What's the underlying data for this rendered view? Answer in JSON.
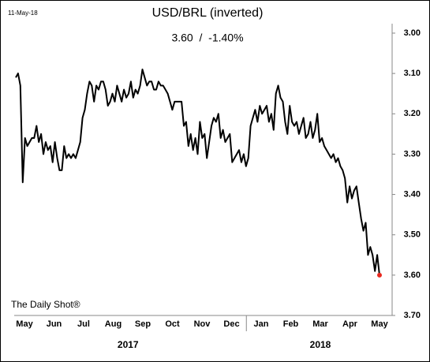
{
  "chart_data": {
    "type": "line",
    "date": "11-May-18",
    "title": "USD/BRL (inverted)",
    "subtitle": "3.60  /  -1.40%",
    "source": "The Daily Shot®",
    "x_labels": [
      "May",
      "Jun",
      "Jul",
      "Aug",
      "Sep",
      "Oct",
      "Nov",
      "Dec",
      "Jan",
      "Feb",
      "Mar",
      "Apr",
      "May"
    ],
    "years": [
      "2017",
      "2018"
    ],
    "inverted": true,
    "ylim": [
      3.0,
      3.7
    ],
    "yticks": [
      {
        "value": 3.0,
        "label": "3.00"
      },
      {
        "value": 3.1,
        "label": "3.10"
      },
      {
        "value": 3.2,
        "label": "3.20"
      },
      {
        "value": 3.3,
        "label": "3.30"
      },
      {
        "value": 3.4,
        "label": "3.40"
      },
      {
        "value": 3.5,
        "label": "3.50"
      },
      {
        "value": 3.6,
        "label": "3.60"
      },
      {
        "value": 3.7,
        "label": "3.70"
      }
    ],
    "series": [
      {
        "name": "USD/BRL",
        "color": "#000000",
        "last_point_color": "#e8281e",
        "values": [
          3.11,
          3.1,
          3.13,
          3.37,
          3.26,
          3.28,
          3.27,
          3.26,
          3.26,
          3.23,
          3.27,
          3.25,
          3.3,
          3.27,
          3.29,
          3.28,
          3.32,
          3.27,
          3.31,
          3.34,
          3.34,
          3.28,
          3.31,
          3.3,
          3.31,
          3.3,
          3.31,
          3.29,
          3.27,
          3.21,
          3.19,
          3.15,
          3.12,
          3.13,
          3.17,
          3.13,
          3.14,
          3.12,
          3.12,
          3.14,
          3.18,
          3.17,
          3.15,
          3.17,
          3.13,
          3.15,
          3.17,
          3.14,
          3.16,
          3.15,
          3.12,
          3.16,
          3.14,
          3.15,
          3.13,
          3.09,
          3.11,
          3.13,
          3.12,
          3.12,
          3.14,
          3.14,
          3.12,
          3.13,
          3.13,
          3.14,
          3.15,
          3.17,
          3.19,
          3.17,
          3.17,
          3.17,
          3.17,
          3.23,
          3.22,
          3.28,
          3.25,
          3.29,
          3.26,
          3.3,
          3.22,
          3.26,
          3.25,
          3.31,
          3.27,
          3.23,
          3.21,
          3.22,
          3.2,
          3.26,
          3.24,
          3.27,
          3.26,
          3.25,
          3.32,
          3.31,
          3.3,
          3.29,
          3.32,
          3.3,
          3.33,
          3.31,
          3.23,
          3.21,
          3.19,
          3.22,
          3.18,
          3.2,
          3.19,
          3.18,
          3.22,
          3.2,
          3.24,
          3.15,
          3.13,
          3.16,
          3.17,
          3.22,
          3.25,
          3.18,
          3.22,
          3.23,
          3.22,
          3.25,
          3.23,
          3.21,
          3.26,
          3.25,
          3.22,
          3.26,
          3.24,
          3.2,
          3.27,
          3.26,
          3.28,
          3.29,
          3.3,
          3.31,
          3.3,
          3.32,
          3.31,
          3.33,
          3.34,
          3.36,
          3.42,
          3.38,
          3.41,
          3.39,
          3.38,
          3.42,
          3.46,
          3.49,
          3.47,
          3.55,
          3.53,
          3.55,
          3.59,
          3.55,
          3.6
        ]
      }
    ]
  }
}
